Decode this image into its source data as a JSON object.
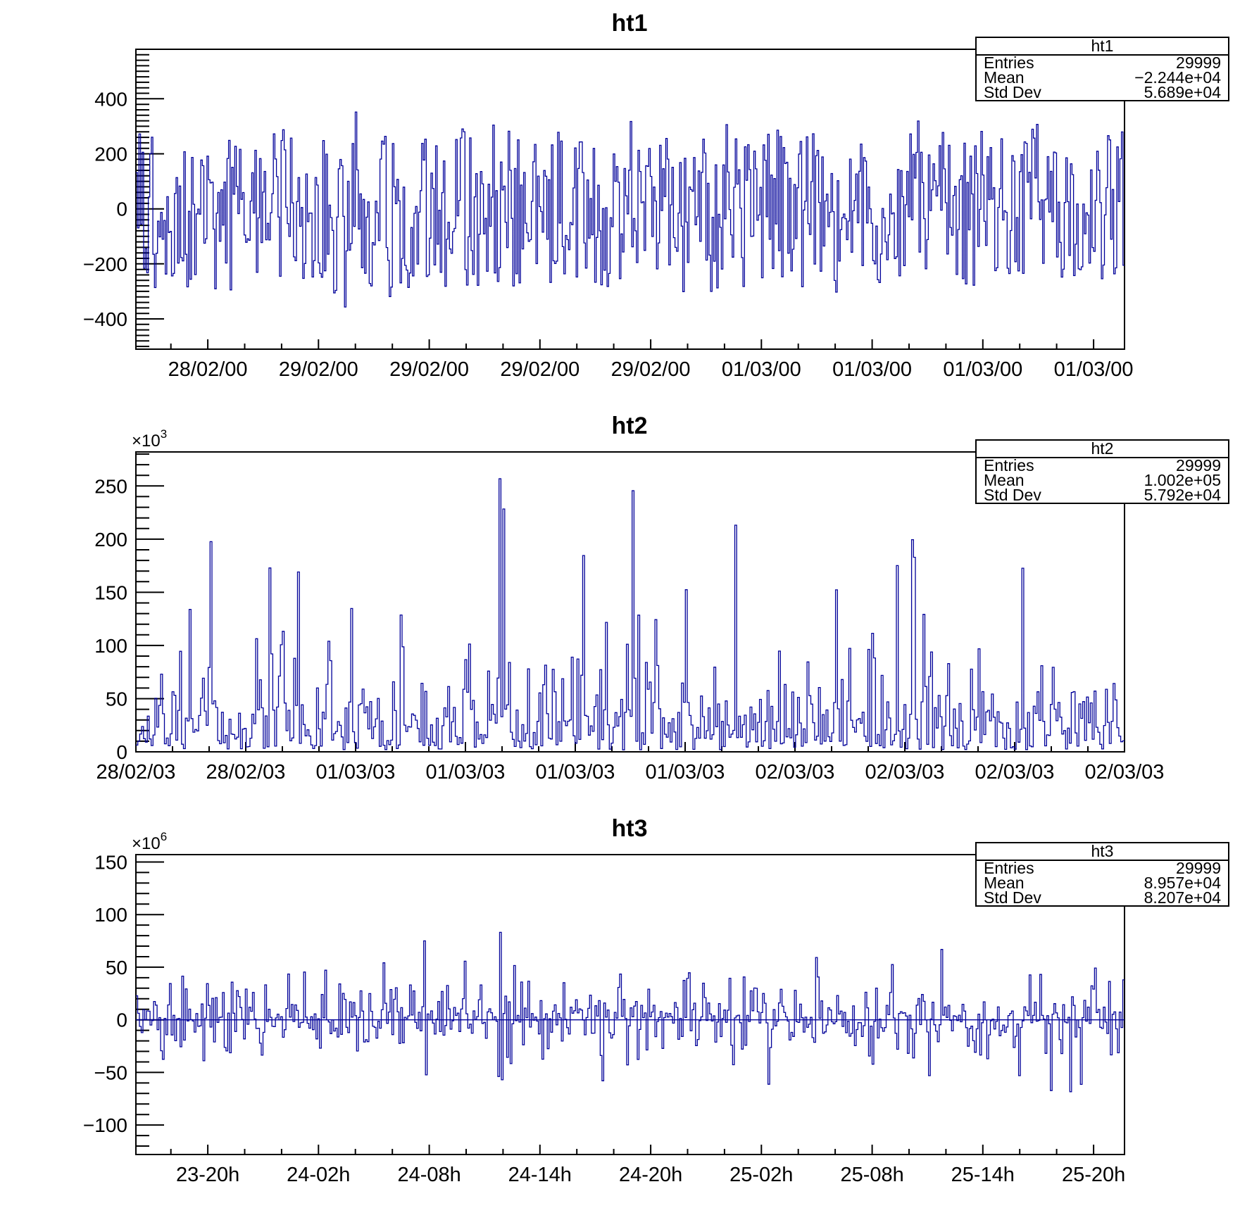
{
  "canvas": {
    "background": "#ffffff",
    "hist_color": "#000099",
    "axis_color": "#000000",
    "text_color": "#000000"
  },
  "chart_data": [
    {
      "type": "bar",
      "title": "ht1",
      "stats": {
        "name": "ht1",
        "rows": [
          {
            "label": "Entries",
            "value": "29999"
          },
          {
            "label": "Mean",
            "value": "−2.244e+04"
          },
          {
            "label": "Std Dev",
            "value": "5.689e+04"
          }
        ]
      },
      "ylim": [
        -510,
        580
      ],
      "y_major": [
        400,
        200,
        0,
        -200,
        -400
      ],
      "y_major_labels": [
        "400",
        "200",
        "0",
        "−200",
        "−400"
      ],
      "y_minor_step": 20,
      "y_exponent": null,
      "x_labels": [
        "28/02/00",
        "29/02/00",
        "29/02/00",
        "29/02/00",
        "29/02/00",
        "01/03/00",
        "01/03/00",
        "01/03/00",
        "01/03/00"
      ],
      "x_offset_frac": 0.0727,
      "x_step_frac": 0.112,
      "x_minor_per_major": 3,
      "baseline_zero_line": false,
      "synthesis": {
        "seed": 101,
        "bins": 640,
        "model": "band",
        "band_min": 235,
        "band_max": 335,
        "spike_prob": 0.03,
        "spike_scale": 1.5,
        "clamp": [
          -500,
          545
        ]
      }
    },
    {
      "type": "bar",
      "title": "ht2",
      "stats": {
        "name": "ht2",
        "rows": [
          {
            "label": "Entries",
            "value": "29999"
          },
          {
            "label": "Mean",
            "value": "1.002e+05"
          },
          {
            "label": "Std Dev",
            "value": "5.792e+04"
          }
        ]
      },
      "ylim": [
        0,
        282000
      ],
      "y_major": [
        250000,
        200000,
        150000,
        100000,
        50000,
        0
      ],
      "y_major_labels": [
        "250",
        "200",
        "150",
        "100",
        "50",
        "0"
      ],
      "y_minor_step": 10000,
      "y_exponent": {
        "base": "×10",
        "power": "3"
      },
      "x_labels": [
        "28/02/03",
        "28/02/03",
        "01/03/03",
        "01/03/03",
        "01/03/03",
        "01/03/03",
        "02/03/03",
        "02/03/03",
        "02/03/03",
        "02/03/03"
      ],
      "x_offset_frac": 0.0,
      "x_step_frac": 0.11111,
      "x_minor_per_major": 3,
      "baseline_zero_line": false,
      "synthesis": {
        "seed": 202,
        "bins": 520,
        "model": "expo",
        "floor": 1800,
        "scale": 33000,
        "tall_prob": 0.012,
        "tall_min": 150000,
        "tall_span": 122000,
        "clamp": [
          0,
          272000
        ]
      }
    },
    {
      "type": "bar",
      "title": "ht3",
      "stats": {
        "name": "ht3",
        "rows": [
          {
            "label": "Entries",
            "value": "29999"
          },
          {
            "label": "Mean",
            "value": "8.957e+04"
          },
          {
            "label": "Std Dev",
            "value": "8.207e+04"
          }
        ]
      },
      "ylim": [
        -128000000,
        157000000
      ],
      "y_major": [
        150000000,
        100000000,
        50000000,
        0,
        -50000000,
        -100000000
      ],
      "y_major_labels": [
        "150",
        "100",
        "50",
        "0",
        "−50",
        "−100"
      ],
      "y_minor_step": 10000000,
      "y_exponent": {
        "base": "×10",
        "power": "6"
      },
      "x_labels": [
        "23-20h",
        "24-02h",
        "24-08h",
        "24-14h",
        "24-20h",
        "25-02h",
        "25-08h",
        "25-14h",
        "25-20h"
      ],
      "x_offset_frac": 0.0727,
      "x_step_frac": 0.112,
      "x_minor_per_major": 3,
      "baseline_zero_line": true,
      "synthesis": {
        "seed": 303,
        "bins": 560,
        "model": "laplace",
        "scale": 14000000,
        "spike_prob": 0.012,
        "spike_scale": 2.0,
        "clamp": [
          -118000000,
          142000000
        ]
      }
    }
  ]
}
